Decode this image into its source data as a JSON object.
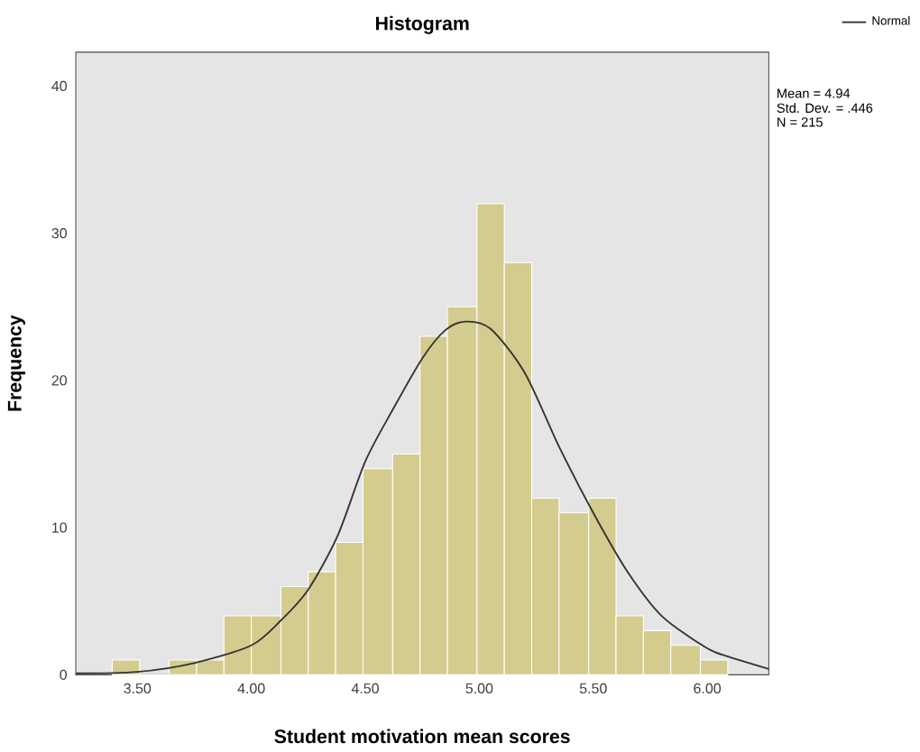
{
  "chart_data": {
    "type": "histogram",
    "title": "Histogram",
    "xlabel": "Student motivation mean scores",
    "ylabel": "Frequency",
    "bins": [
      3.39,
      3.51,
      3.64,
      3.76,
      3.88,
      4.0,
      4.13,
      4.25,
      4.37,
      4.49,
      4.62,
      4.74,
      4.86,
      4.99,
      5.11,
      5.23,
      5.35,
      5.48,
      5.6,
      5.72,
      5.84,
      5.97,
      6.09
    ],
    "values": [
      1,
      0,
      1,
      1,
      4,
      4,
      6,
      7,
      9,
      14,
      15,
      23,
      25,
      32,
      28,
      12,
      11,
      12,
      4,
      3,
      2,
      1
    ],
    "color": "#d4cc8e",
    "series": [
      {
        "name": "Normal",
        "type": "line",
        "color": "#333333",
        "x": [
          3.23,
          3.5,
          3.75,
          4.0,
          4.13,
          4.25,
          4.38,
          4.5,
          4.62,
          4.75,
          4.85,
          4.94,
          5.05,
          5.2,
          5.35,
          5.5,
          5.65,
          5.8,
          6.0,
          6.1,
          6.27
        ],
        "values": [
          0.1,
          0.2,
          0.8,
          2.0,
          3.7,
          5.8,
          9.5,
          14.5,
          18,
          21.5,
          23.4,
          24,
          23.5,
          20.5,
          15.5,
          11,
          7,
          4,
          1.8,
          1.2,
          0.4
        ]
      }
    ],
    "annotations": [
      "Mean = 4.94",
      "Std. Dev. = .446",
      "N = 215"
    ],
    "xlim": [
      3.23,
      6.27
    ],
    "ylim": [
      0,
      42.3
    ],
    "xticks": [
      {
        "value": 3.5,
        "label": "3.50"
      },
      {
        "value": 4.0,
        "label": "4.00"
      },
      {
        "value": 4.5,
        "label": "4.50"
      },
      {
        "value": 5.0,
        "label": "5.00"
      },
      {
        "value": 5.5,
        "label": "5.50"
      },
      {
        "value": 6.0,
        "label": "6.00"
      }
    ],
    "yticks": [
      0,
      10,
      20,
      30,
      40
    ],
    "legend": "top right"
  }
}
